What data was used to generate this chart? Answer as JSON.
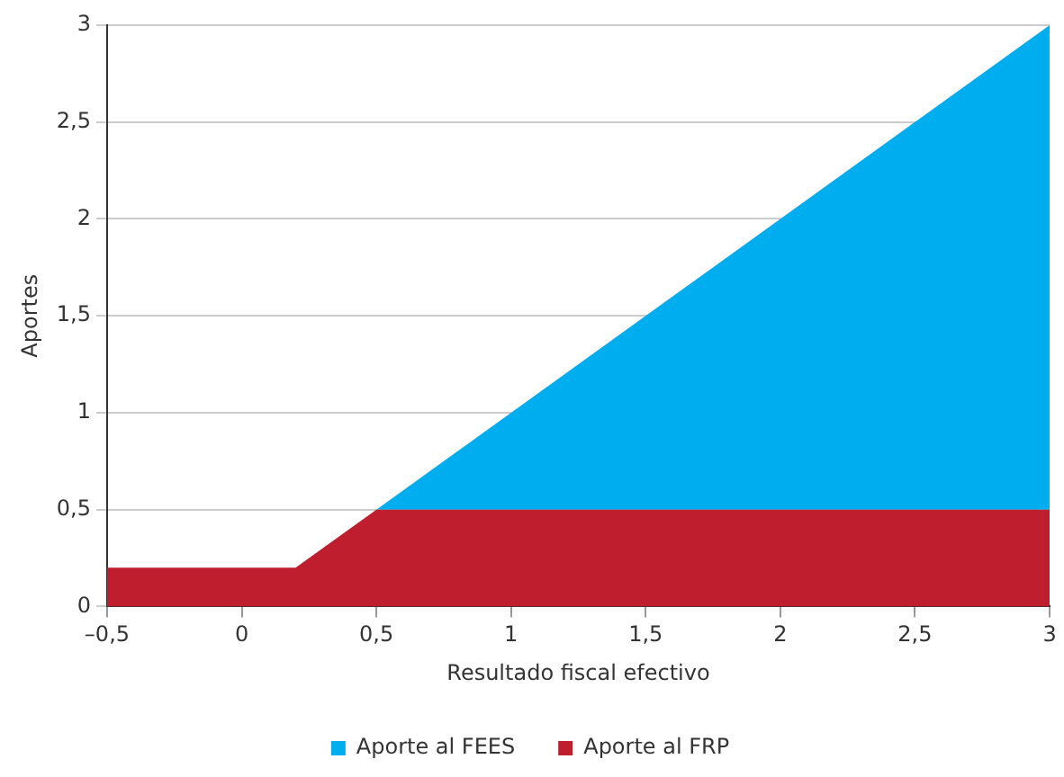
{
  "chart_data": {
    "type": "area",
    "xlabel": "Resultado fiscal efectivo",
    "ylabel": "Aportes",
    "x": [
      -0.5,
      0.2,
      0.5,
      3
    ],
    "series": [
      {
        "name": "Aporte al FRP",
        "color": "#be1e2d",
        "values": [
          0.2,
          0.2,
          0.5,
          0.5
        ]
      },
      {
        "name": "Aporte al FEES",
        "color": "#00adef",
        "values": [
          null,
          null,
          0,
          2.5
        ]
      }
    ],
    "stacked": true,
    "xlim": [
      -0.5,
      3
    ],
    "xticks": [
      {
        "value": -0.5,
        "label": "–0,5"
      },
      0,
      {
        "value": 0.5,
        "label": "0,5"
      },
      1,
      {
        "value": 1.5,
        "label": "1,5"
      },
      2,
      {
        "value": 2.5,
        "label": "2,5"
      },
      3
    ],
    "ylim": [
      0,
      3
    ],
    "yticks": [
      0,
      {
        "value": 0.5,
        "label": "0,5"
      },
      1,
      {
        "value": 1.5,
        "label": "1,5"
      },
      2,
      {
        "value": 2.5,
        "label": "2,5"
      },
      3
    ],
    "grid": "y",
    "legend": "bottom",
    "marker": "none"
  }
}
